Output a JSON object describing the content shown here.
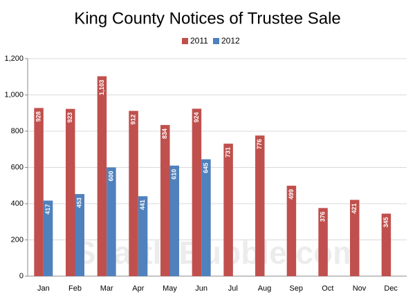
{
  "chart_data": {
    "type": "bar",
    "title": "King County Notices of Trustee Sale",
    "watermark": "SeattleBubble.com",
    "categories": [
      "Jan",
      "Feb",
      "Mar",
      "Apr",
      "May",
      "Jun",
      "Jul",
      "Aug",
      "Sep",
      "Oct",
      "Nov",
      "Dec"
    ],
    "series": [
      {
        "name": "2011",
        "color": "#c0504d",
        "values": [
          928,
          923,
          1103,
          912,
          834,
          924,
          731,
          776,
          499,
          376,
          421,
          345
        ],
        "value_labels": [
          "928",
          "923",
          "1,103",
          "912",
          "834",
          "924",
          "731",
          "776",
          "499",
          "376",
          "421",
          "345"
        ]
      },
      {
        "name": "2012",
        "color": "#4f81bd",
        "values": [
          417,
          453,
          600,
          441,
          610,
          645,
          null,
          null,
          null,
          null,
          null,
          null
        ],
        "value_labels": [
          "417",
          "453",
          "600",
          "441",
          "610",
          "645",
          null,
          null,
          null,
          null,
          null,
          null
        ]
      }
    ],
    "ylim": [
      0,
      1200
    ],
    "yticks": [
      0,
      200,
      400,
      600,
      800,
      {
        "value": 1000,
        "label": "1,000"
      },
      {
        "value": 1200,
        "label": "1,200"
      }
    ],
    "grid": true,
    "legend": "top"
  }
}
